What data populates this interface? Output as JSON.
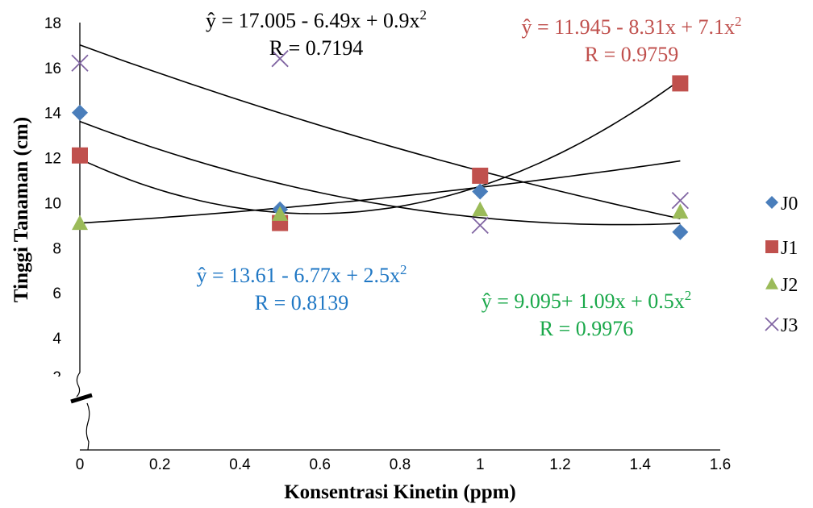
{
  "chart_data": {
    "type": "scatter",
    "xlabel": "Konsentrasi Kinetin (ppm)",
    "ylabel": "Tinggi Tanaman (cm)",
    "xlim": [
      0,
      1.6
    ],
    "ylim": [
      2,
      18
    ],
    "x_ticks": [
      "0",
      "0.2",
      "0.4",
      "0.6",
      "0.8",
      "1",
      "1.2",
      "1.4",
      "1.6"
    ],
    "y_ticks": [
      "2",
      "4",
      "6",
      "8",
      "10",
      "12",
      "14",
      "16",
      "18"
    ],
    "axis_break": true,
    "legend_position": "right",
    "series": [
      {
        "name": "J0",
        "marker": "diamond",
        "color": "#4a7ebb",
        "x": [
          0,
          0.5,
          1,
          1.5
        ],
        "y": [
          14.0,
          9.7,
          10.5,
          8.7
        ],
        "trend": {
          "a": 13.61,
          "b": -6.77,
          "c": 2.5
        },
        "equation": "ŷ = 13.61 - 6.77x + 2.5x",
        "equation_exp": "2",
        "r_label": "R = 0.8139",
        "label_color": "#1f77c4"
      },
      {
        "name": "J1",
        "marker": "square",
        "color": "#c0504d",
        "x": [
          0,
          0.5,
          1,
          1.5
        ],
        "y": [
          12.1,
          9.1,
          11.2,
          15.3
        ],
        "trend": {
          "a": 11.945,
          "b": -8.31,
          "c": 7.1
        },
        "equation": "ŷ = 11.945 - 8.31x + 7.1x",
        "equation_exp": "2",
        "r_label": "R = 0.9759",
        "label_color": "#c0504d"
      },
      {
        "name": "J2",
        "marker": "triangle",
        "color": "#9bbb59",
        "x": [
          0,
          0.5,
          1,
          1.5
        ],
        "y": [
          9.1,
          9.5,
          9.7,
          9.6
        ],
        "trend": {
          "a": 9.095,
          "b": 1.09,
          "c": 0.5
        },
        "equation": "ŷ =  9.095+ 1.09x + 0.5x",
        "equation_exp": "2",
        "r_label": "R = 0.9976",
        "label_color": "#1aa84a"
      },
      {
        "name": "J3",
        "marker": "x",
        "color": "#8064a2",
        "x": [
          0,
          0.5,
          1,
          1.5
        ],
        "y": [
          16.2,
          16.4,
          9.0,
          10.1
        ],
        "trend": {
          "a": 17.005,
          "b": -6.49,
          "c": 0.9
        },
        "equation": "ŷ = 17.005 - 6.49x + 0.9x",
        "equation_exp": "2",
        "r_label": "R = 0.7194",
        "label_color": "#000000"
      }
    ]
  }
}
